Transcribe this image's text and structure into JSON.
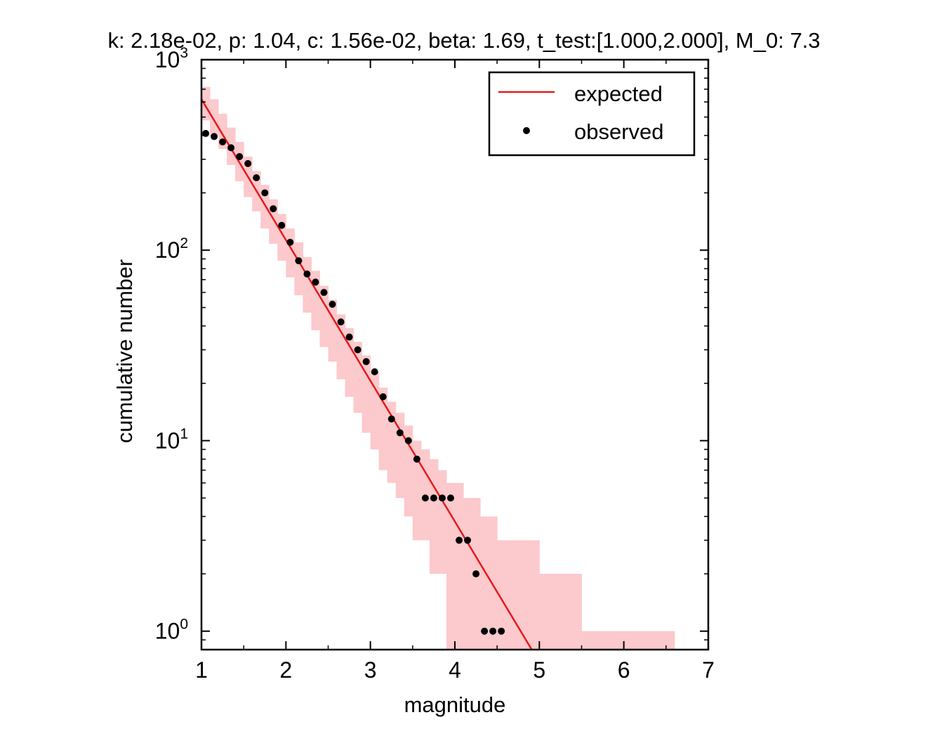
{
  "chart_data": {
    "type": "scatter",
    "title": "k: 2.18e-02, p: 1.04, c: 1.56e-02, beta: 1.69, t_test:[1.000,2.000], M_0: 7.3",
    "xlabel": "magnitude",
    "ylabel": "cumulative number",
    "xlim": [
      1,
      7
    ],
    "ylim": [
      0.8,
      1000
    ],
    "y_scale": "log",
    "grid": false,
    "legend_position": "top-right",
    "x_ticks": [
      1,
      2,
      3,
      4,
      5,
      6,
      7
    ],
    "x_tick_labels": [
      "1",
      "2",
      "3",
      "4",
      "5",
      "6",
      "7"
    ],
    "y_ticks": [
      1,
      10,
      100,
      1000
    ],
    "y_tick_labels": [
      {
        "base": "10",
        "exp": "0"
      },
      {
        "base": "10",
        "exp": "1"
      },
      {
        "base": "10",
        "exp": "2"
      },
      {
        "base": "10",
        "exp": "3"
      }
    ],
    "colors": {
      "expected": "#e41a1c",
      "band": "#fcc9cc",
      "observed": "#000000"
    },
    "series": [
      {
        "name": "expected",
        "style": "line",
        "x": [
          1.0,
          4.91
        ],
        "y": [
          620,
          0.8
        ]
      },
      {
        "name": "observed",
        "style": "points",
        "x": [
          1.05,
          1.15,
          1.25,
          1.35,
          1.45,
          1.55,
          1.65,
          1.75,
          1.85,
          1.95,
          2.05,
          2.15,
          2.25,
          2.35,
          2.45,
          2.55,
          2.65,
          2.75,
          2.85,
          2.95,
          3.05,
          3.15,
          3.25,
          3.35,
          3.45,
          3.55,
          3.65,
          3.75,
          3.85,
          3.95,
          4.05,
          4.15,
          4.25,
          4.35,
          4.45,
          4.55
        ],
        "y": [
          410,
          395,
          370,
          345,
          310,
          285,
          240,
          200,
          165,
          135,
          110,
          88,
          75,
          68,
          60,
          52,
          42,
          35,
          30,
          26,
          23,
          17,
          13,
          11,
          10,
          8,
          5,
          5,
          5,
          5,
          3,
          3,
          2,
          1,
          1,
          1
        ]
      }
    ],
    "confidence_band": {
      "bin_edges": [
        1.0,
        1.1,
        1.2,
        1.3,
        1.4,
        1.5,
        1.6,
        1.7,
        1.8,
        1.9,
        2.0,
        2.1,
        2.2,
        2.3,
        2.4,
        2.5,
        2.6,
        2.7,
        2.8,
        2.9,
        3.0,
        3.1,
        3.2,
        3.3,
        3.4,
        3.5,
        3.6,
        3.7,
        3.8,
        3.9,
        4.0,
        4.1,
        4.2,
        4.3,
        4.4,
        4.5,
        5.0,
        5.5,
        6.0,
        6.6
      ],
      "lower": [
        480,
        400,
        340,
        280,
        230,
        190,
        160,
        130,
        108,
        88,
        72,
        58,
        47,
        38,
        31,
        26,
        21,
        17,
        14,
        11,
        9,
        7,
        6,
        5,
        4,
        3,
        3,
        2,
        2,
        0.8,
        0.8,
        0.8,
        0.8,
        0.8,
        0.8,
        0.8,
        0.8,
        0.8,
        0.8
      ],
      "upper": [
        720,
        620,
        520,
        440,
        370,
        310,
        260,
        220,
        185,
        155,
        130,
        110,
        92,
        78,
        65,
        55,
        46,
        39,
        33,
        28,
        23,
        19,
        16,
        14,
        12,
        10,
        9,
        8,
        7,
        6,
        6,
        5,
        5,
        4,
        4,
        3,
        2,
        1,
        1
      ]
    }
  }
}
